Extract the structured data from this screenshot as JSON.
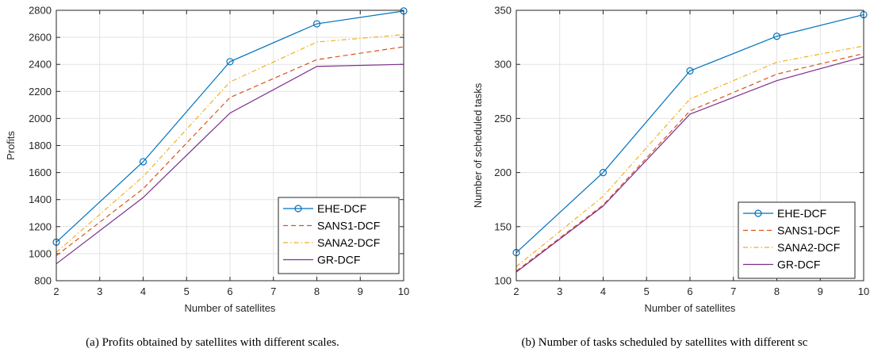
{
  "chart_data": [
    {
      "type": "line",
      "x": [
        2,
        4,
        6,
        8,
        10
      ],
      "xlabel": "Number of satellites",
      "ylabel": "Profits",
      "xlim": [
        2,
        10
      ],
      "ylim": [
        800,
        2800
      ],
      "xticks": [
        2,
        3,
        4,
        5,
        6,
        7,
        8,
        9,
        10
      ],
      "yticks": [
        800,
        1000,
        1200,
        1400,
        1600,
        1800,
        2000,
        2200,
        2400,
        2600,
        2800
      ],
      "grid": true,
      "legend_position": "bottom-right",
      "series": [
        {
          "name": "EHE-DCF",
          "color": "#0072BD",
          "style": "solid",
          "marker": "circle",
          "values": [
            1085,
            1680,
            2420,
            2700,
            2795
          ]
        },
        {
          "name": "SANS1-DCF",
          "color": "#D95319",
          "style": "dashed",
          "marker": "none",
          "values": [
            985,
            1480,
            2155,
            2435,
            2530
          ]
        },
        {
          "name": "SANA2-DCF",
          "color": "#EDB120",
          "style": "dashdot",
          "marker": "none",
          "values": [
            1010,
            1570,
            2270,
            2565,
            2620
          ]
        },
        {
          "name": "GR-DCF",
          "color": "#7E2F8E",
          "style": "solid",
          "marker": "none",
          "values": [
            925,
            1415,
            2040,
            2385,
            2400
          ]
        }
      ],
      "caption": "(a) Profits obtained by satellites with different scales."
    },
    {
      "type": "line",
      "x": [
        2,
        4,
        6,
        8,
        10
      ],
      "xlabel": "Number of satellites",
      "ylabel": "Number of scheduled tasks",
      "xlim": [
        2,
        10
      ],
      "ylim": [
        100,
        350
      ],
      "xticks": [
        2,
        3,
        4,
        5,
        6,
        7,
        8,
        9,
        10
      ],
      "yticks": [
        100,
        150,
        200,
        250,
        300,
        350
      ],
      "grid": true,
      "legend_position": "bottom-right",
      "series": [
        {
          "name": "EHE-DCF",
          "color": "#0072BD",
          "style": "solid",
          "marker": "circle",
          "values": [
            126,
            200,
            294,
            326,
            346
          ]
        },
        {
          "name": "SANS1-DCF",
          "color": "#D95319",
          "style": "dashed",
          "marker": "none",
          "values": [
            109,
            170,
            257,
            291,
            310
          ]
        },
        {
          "name": "SANA2-DCF",
          "color": "#EDB120",
          "style": "dashdot",
          "marker": "none",
          "values": [
            113,
            178,
            268,
            302,
            317
          ]
        },
        {
          "name": "GR-DCF",
          "color": "#7E2F8E",
          "style": "solid",
          "marker": "none",
          "values": [
            108,
            169,
            254,
            285,
            307
          ]
        }
      ],
      "caption": "(b) Number of tasks scheduled by satellites with different sc"
    }
  ]
}
